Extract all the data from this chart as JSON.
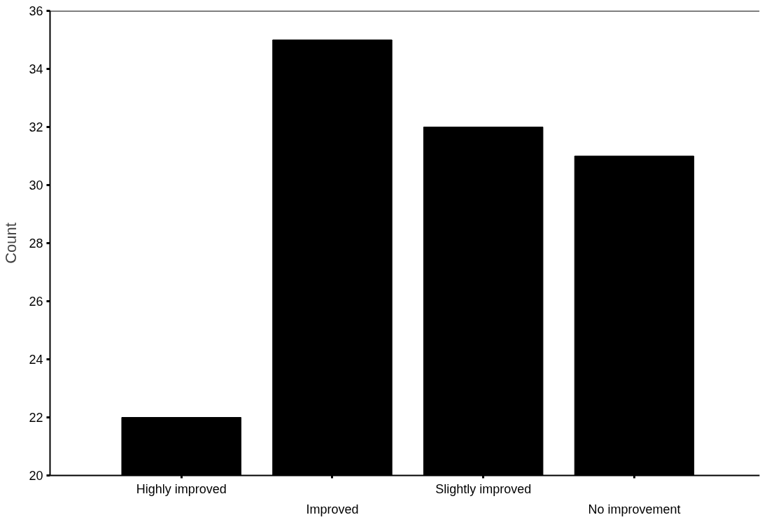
{
  "chart_data": {
    "type": "bar",
    "ylabel": "Count",
    "categories": [
      "Highly improved",
      "Improved",
      "Slightly improved",
      "No improvement"
    ],
    "values": [
      22,
      35,
      32,
      31
    ],
    "color": "#000000",
    "ylim": [
      20,
      36
    ],
    "yticks": [
      20,
      22,
      24,
      26,
      28,
      30,
      32,
      34,
      36
    ],
    "grid": false
  }
}
